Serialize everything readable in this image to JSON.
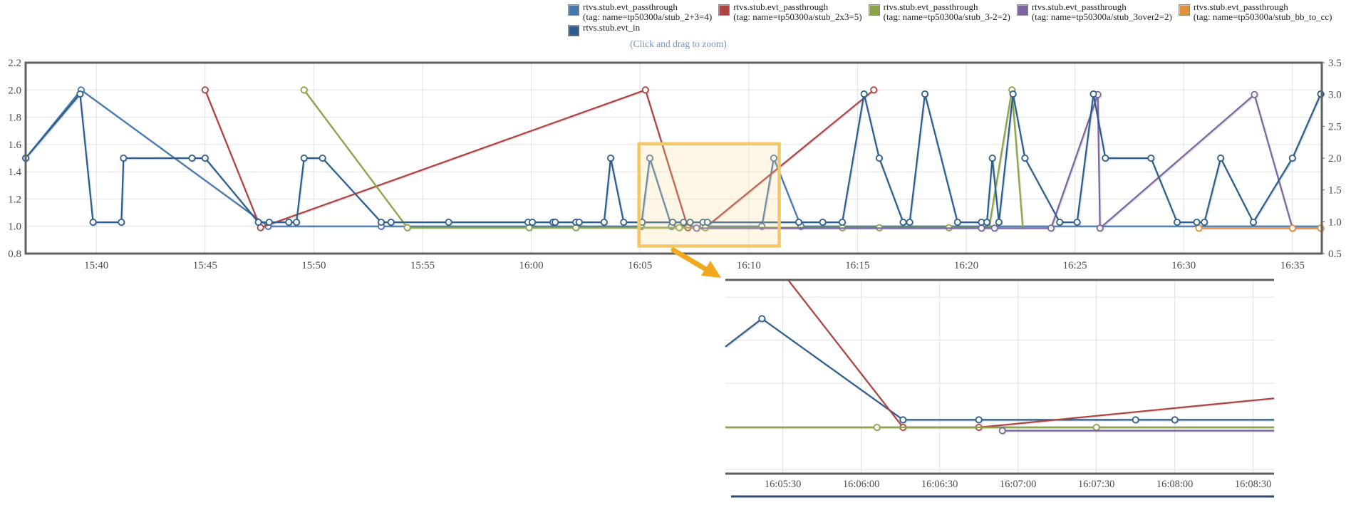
{
  "hint": {
    "text": "(Click and drag to zoom)"
  },
  "legend": {
    "rows": [
      {
        "items": [
          {
            "label_line1": "rtvs.stub.evt_passthrough",
            "label_line2": "(tag: name=tp50300a/stub_2+3=4)",
            "color": "#4677ae"
          },
          {
            "label_line1": "rtvs.stub.evt_passthrough",
            "label_line2": "(tag: name=tp50300a/stub_2x3=5)",
            "color": "#ae4442"
          },
          {
            "label_line1": "rtvs.stub.evt_passthrough",
            "label_line2": "(tag: name=tp50300a/stub_3-2=2)",
            "color": "#8ba446"
          },
          {
            "label_line1": "rtvs.stub.evt_passthrough",
            "label_line2": "(tag: name=tp50300a/stub_3over2=2)",
            "color": "#7c63a2"
          },
          {
            "label_line1": "rtvs.stub.evt_passthrough",
            "label_line2": "(tag: name=tp50300a/stub_bb_to_cc)",
            "color": "#e0913d"
          }
        ]
      },
      {
        "items": [
          {
            "label_line1": "rtvs.stub.evt_in",
            "label_line2": "",
            "color": "#2c5e8d"
          }
        ]
      }
    ]
  },
  "colors": {
    "grid": "#e2e2e2",
    "spine": "#5f5f5f",
    "selection_border": "#f3c666",
    "selection_fill": "rgba(249,219,139,0.22)",
    "arrow": "#f2a81d",
    "next_chart_edge": "#2c4d6e"
  },
  "chart_data": [
    {
      "type": "line",
      "title": "main time-series (15:40 - 16:35)",
      "x_tick_labels": [
        "15:40",
        "15:45",
        "15:50",
        "15:55",
        "16:00",
        "16:05",
        "16:10",
        "16:15",
        "16:20",
        "16:25",
        "16:30",
        "16:35"
      ],
      "x_tick_minutes": [
        0,
        5,
        10,
        15,
        20,
        25,
        30,
        35,
        40,
        45,
        50,
        55
      ],
      "xlim_minutes": [
        -3.25,
        56.35
      ],
      "y_left": {
        "ticks": [
          "2.2",
          "2.0",
          "1.8",
          "1.6",
          "1.4",
          "1.2",
          "1.0",
          "0.8"
        ],
        "tick_values": [
          2.2,
          2.0,
          1.8,
          1.6,
          1.4,
          1.2,
          1.0,
          0.8
        ],
        "min": 0.8,
        "max": 2.2
      },
      "y_right": {
        "ticks": [
          "3.5",
          "3.0",
          "2.5",
          "2.0",
          "1.5",
          "1.0",
          "0.5"
        ],
        "tick_values": [
          3.5,
          3.0,
          2.5,
          2.0,
          1.5,
          1.0,
          0.5
        ],
        "min": 0.5,
        "max": 3.5
      },
      "grid": true,
      "legend_position": "top",
      "selection_box": {
        "t1": 24.95,
        "t2": 31.4,
        "v_top": 1.605,
        "v_bottom": 0.855
      },
      "series": [
        {
          "name": "rtvs.stub.evt_passthrough (stub_2+3=4)",
          "color": "#4677ae",
          "axis": "left",
          "points": [
            [
              -3.25,
              1.5,
              1
            ],
            [
              -0.7,
              2.0,
              1
            ],
            [
              7.9,
              1.0,
              1
            ],
            [
              13.1,
              1.0,
              1
            ],
            [
              19.9,
              1.0,
              0
            ],
            [
              25.05,
              1.0,
              1
            ],
            [
              25.45,
              1.5,
              1
            ],
            [
              26.45,
              1.0,
              1
            ],
            [
              27.9,
              1.0,
              1
            ],
            [
              30.6,
              1.0,
              1
            ],
            [
              31.15,
              1.5,
              1
            ],
            [
              32.4,
              1.0,
              1
            ],
            [
              56.35,
              1.0,
              0
            ]
          ]
        },
        {
          "name": "rtvs.stub.evt_passthrough (stub_2x3=5)",
          "color": "#ae4442",
          "axis": "left",
          "points": [
            [
              5.0,
              2.0,
              1
            ],
            [
              7.55,
              0.99,
              1
            ],
            [
              25.25,
              2.0,
              1
            ],
            [
              27.2,
              0.99,
              1
            ],
            [
              28.0,
              0.99,
              0
            ],
            [
              35.75,
              2.0,
              1
            ]
          ]
        },
        {
          "name": "rtvs.stub.evt_passthrough (stub_3-2=2)",
          "color": "#8ba446",
          "axis": "left",
          "points": [
            [
              9.55,
              2.0,
              1
            ],
            [
              14.3,
              0.99,
              1
            ],
            [
              19.9,
              0.99,
              1
            ],
            [
              22.05,
              0.99,
              1
            ],
            [
              26.8,
              0.99,
              1
            ],
            [
              28.0,
              0.99,
              1
            ],
            [
              34.3,
              0.99,
              1
            ],
            [
              36.0,
              0.99,
              1
            ],
            [
              39.2,
              0.99,
              1
            ],
            [
              41.05,
              0.99,
              0
            ],
            [
              42.1,
              2.0,
              1
            ],
            [
              42.6,
              0.99,
              0
            ]
          ]
        },
        {
          "name": "rtvs.stub.evt_passthrough (stub_3over2=2)",
          "color": "#7c63a2",
          "axis": "right",
          "points": [
            [
              27.6,
              0.9,
              1
            ],
            [
              40.7,
              0.9,
              1
            ],
            [
              41.3,
              0.9,
              1
            ],
            [
              43.9,
              0.9,
              1
            ],
            [
              46.05,
              3.0,
              1
            ],
            [
              46.15,
              0.9,
              1
            ],
            [
              53.25,
              3.0,
              1
            ],
            [
              55.0,
              0.9,
              1
            ],
            [
              56.35,
              0.9,
              0
            ]
          ]
        },
        {
          "name": "rtvs.stub.evt_passthrough (stub_bb_to_cc)",
          "color": "#e0913d",
          "axis": "right",
          "points": [
            [
              50.7,
              0.9,
              1
            ],
            [
              55.0,
              0.9,
              1
            ],
            [
              56.3,
              0.9,
              1
            ]
          ]
        },
        {
          "name": "rtvs.stub.evt_in",
          "color": "#2c5e8d",
          "axis": "left",
          "points": [
            [
              -3.25,
              1.5,
              1
            ],
            [
              -0.75,
              1.97,
              1
            ],
            [
              -0.15,
              1.03,
              1
            ],
            [
              1.15,
              1.03,
              1
            ],
            [
              1.25,
              1.5,
              1
            ],
            [
              4.4,
              1.5,
              1
            ],
            [
              5.0,
              1.5,
              1
            ],
            [
              7.45,
              1.03,
              1
            ],
            [
              7.95,
              1.03,
              1
            ],
            [
              8.85,
              1.03,
              1
            ],
            [
              9.2,
              1.03,
              1
            ],
            [
              9.55,
              1.5,
              1
            ],
            [
              10.4,
              1.5,
              1
            ],
            [
              13.1,
              1.03,
              1
            ],
            [
              13.55,
              1.03,
              1
            ],
            [
              16.2,
              1.03,
              1
            ],
            [
              19.85,
              1.03,
              1
            ],
            [
              20.05,
              1.03,
              1
            ],
            [
              21.0,
              1.03,
              1
            ],
            [
              21.1,
              1.03,
              1
            ],
            [
              22.05,
              1.03,
              1
            ],
            [
              22.2,
              1.03,
              1
            ],
            [
              23.35,
              1.03,
              1
            ],
            [
              23.65,
              1.5,
              1
            ],
            [
              24.25,
              1.03,
              1
            ],
            [
              25.1,
              1.03,
              1
            ],
            [
              26.5,
              1.03,
              1
            ],
            [
              27.0,
              1.03,
              1
            ],
            [
              27.3,
              1.03,
              1
            ],
            [
              27.9,
              1.03,
              1
            ],
            [
              28.1,
              1.03,
              1
            ],
            [
              32.3,
              1.03,
              1
            ],
            [
              33.4,
              1.03,
              1
            ],
            [
              34.3,
              1.03,
              1
            ],
            [
              35.3,
              1.97,
              1
            ],
            [
              36.0,
              1.5,
              1
            ],
            [
              37.1,
              1.03,
              1
            ],
            [
              37.4,
              1.03,
              1
            ],
            [
              38.1,
              1.97,
              1
            ],
            [
              39.6,
              1.03,
              1
            ],
            [
              40.7,
              1.03,
              1
            ],
            [
              40.95,
              1.03,
              1
            ],
            [
              41.2,
              1.5,
              1
            ],
            [
              41.5,
              1.03,
              1
            ],
            [
              42.15,
              1.97,
              1
            ],
            [
              42.7,
              1.5,
              1
            ],
            [
              44.3,
              1.03,
              1
            ],
            [
              45.1,
              1.03,
              1
            ],
            [
              45.85,
              1.97,
              1
            ],
            [
              46.4,
              1.5,
              1
            ],
            [
              48.5,
              1.5,
              1
            ],
            [
              49.7,
              1.03,
              1
            ],
            [
              50.6,
              1.03,
              1
            ],
            [
              50.95,
              1.03,
              1
            ],
            [
              51.7,
              1.5,
              1
            ],
            [
              53.2,
              1.03,
              1
            ],
            [
              55.0,
              1.5,
              1
            ],
            [
              56.3,
              1.97,
              1
            ]
          ]
        }
      ]
    },
    {
      "type": "line",
      "title": "zoomed inset (16:05:30 - 16:08:30)",
      "x_tick_labels": [
        "16:05:30",
        "16:06:00",
        "16:06:30",
        "16:07:00",
        "16:07:30",
        "16:08:00",
        "16:08:30"
      ],
      "x_tick_seconds": [
        30,
        60,
        90,
        120,
        150,
        180,
        210
      ],
      "xlim_seconds": [
        8,
        218
      ],
      "ylim": [
        0.78,
        1.68
      ],
      "grid_values": [
        1.6,
        1.4,
        1.2,
        1.0,
        0.8
      ],
      "series": [
        {
          "name": "rtvs.stub.evt_in",
          "color": "#2c5e8d",
          "points": [
            [
              8,
              1.37,
              0
            ],
            [
              22,
              1.5,
              1
            ],
            [
              76,
              1.03,
              1
            ],
            [
              105,
              1.03,
              1
            ],
            [
              112,
              1.03,
              0
            ],
            [
              165,
              1.03,
              1
            ],
            [
              180,
              1.03,
              1
            ],
            [
              218,
              1.03,
              0
            ]
          ]
        },
        {
          "name": "rtvs.stub.evt_passthrough (stub_2x3=5)",
          "color": "#ae4442",
          "points": [
            [
              32,
              1.68,
              0
            ],
            [
              76,
              0.995,
              1
            ],
            [
              105,
              0.995,
              1
            ],
            [
              218,
              1.13,
              0
            ]
          ]
        },
        {
          "name": "rtvs.stub.evt_passthrough (stub_3-2=2)",
          "color": "#8ba446",
          "points": [
            [
              8,
              0.995,
              0
            ],
            [
              66,
              0.995,
              1
            ],
            [
              150,
              0.995,
              1
            ],
            [
              218,
              0.995,
              0
            ]
          ]
        },
        {
          "name": "rtvs.stub.evt_passthrough (stub_3over2=2)",
          "color": "#7c63a2",
          "points": [
            [
              114,
              0.98,
              1
            ],
            [
              218,
              0.98,
              0
            ]
          ]
        }
      ]
    }
  ]
}
